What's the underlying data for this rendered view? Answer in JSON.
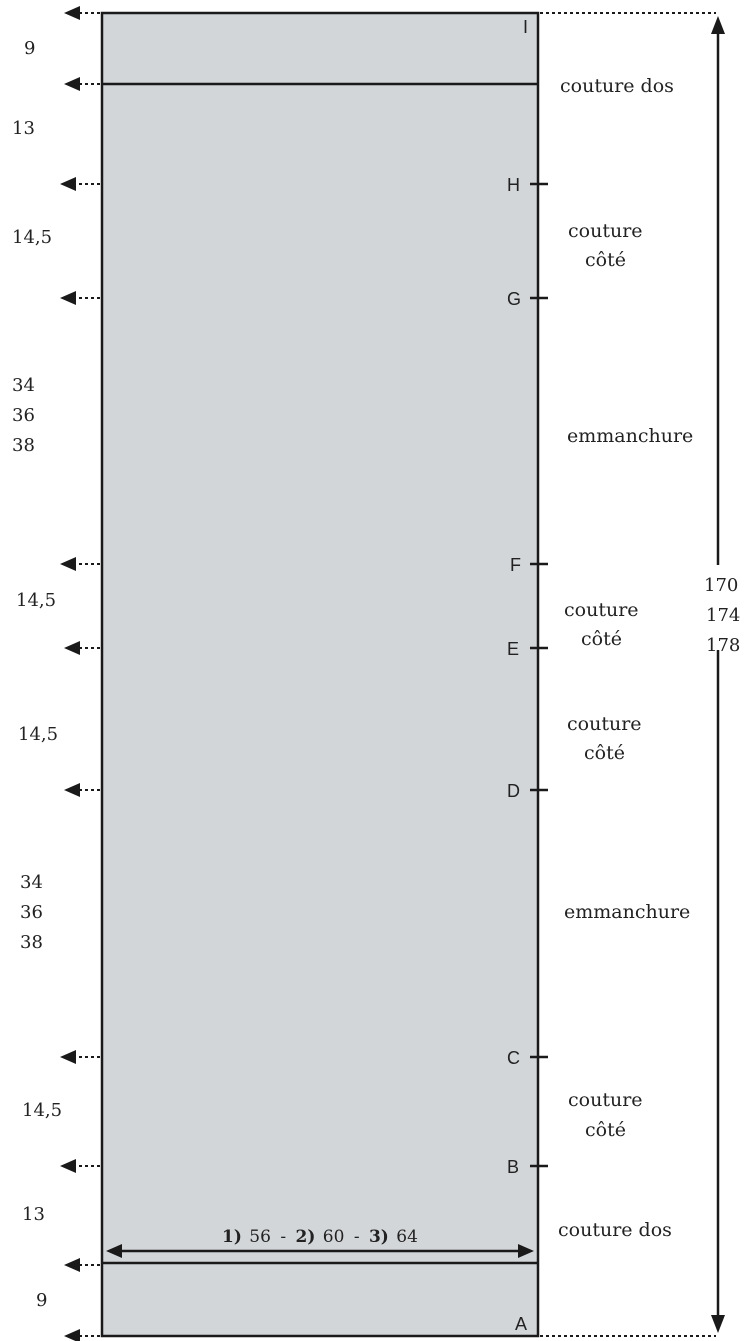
{
  "colors": {
    "panel": "#d2d6d9",
    "stroke": "#1a1a1a",
    "text": "#222222"
  },
  "left_measurements": {
    "top_9": "9",
    "top_13": "13",
    "upper_14_5": "14,5",
    "upper_armhole": [
      "34",
      "36",
      "38"
    ],
    "mid_14_5_a": "14,5",
    "mid_14_5_b": "14,5",
    "lower_armhole": [
      "34",
      "36",
      "38"
    ],
    "lower_14_5": "14,5",
    "bottom_13": "13",
    "bottom_9": "9"
  },
  "right_labels": {
    "couture_dos_top": "couture dos",
    "couture_cote_1": [
      "couture",
      "côté"
    ],
    "emmanchure_1": "emmanchure",
    "couture_cote_2": [
      "couture",
      "côté"
    ],
    "couture_cote_3": [
      "couture",
      "côté"
    ],
    "emmanchure_2": "emmanchure",
    "couture_cote_4": [
      "couture",
      "côté"
    ],
    "couture_dos_bottom": "couture dos"
  },
  "points": {
    "I": "I",
    "H": "H",
    "G": "G",
    "F": "F",
    "E": "E",
    "D": "D",
    "C": "C",
    "B": "B",
    "A": "A"
  },
  "total_length": [
    "170",
    "174",
    "178"
  ],
  "width": {
    "s1_num": "1)",
    "s1_val": "56",
    "sep1": "-",
    "s2_num": "2)",
    "s2_val": "60",
    "sep2": "-",
    "s3_num": "3)",
    "s3_val": "64"
  }
}
